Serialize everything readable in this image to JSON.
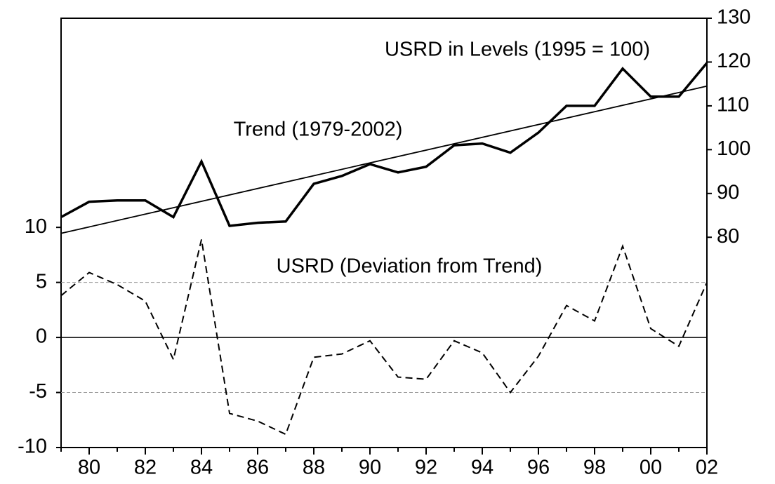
{
  "chart_data": {
    "type": "line",
    "x": [
      1979,
      1980,
      1981,
      1982,
      1983,
      1984,
      1985,
      1986,
      1987,
      1988,
      1989,
      1990,
      1991,
      1992,
      1993,
      1994,
      1995,
      1996,
      1997,
      1998,
      1999,
      2000,
      2001,
      2002
    ],
    "xlim": [
      1979,
      2002
    ],
    "xticks": [
      {
        "value": 1980,
        "label": "80"
      },
      {
        "value": 1982,
        "label": "82"
      },
      {
        "value": 1984,
        "label": "84"
      },
      {
        "value": 1986,
        "label": "86"
      },
      {
        "value": 1988,
        "label": "88"
      },
      {
        "value": 1990,
        "label": "90"
      },
      {
        "value": 1992,
        "label": "92"
      },
      {
        "value": 1994,
        "label": "94"
      },
      {
        "value": 1996,
        "label": "96"
      },
      {
        "value": 1998,
        "label": "98"
      },
      {
        "value": 2000,
        "label": "00"
      },
      {
        "value": 2002,
        "label": "02"
      }
    ],
    "ylim": [
      -10,
      29
    ],
    "yticks": [
      -10,
      -5,
      0,
      5,
      10
    ],
    "y2lim": [
      32,
      130
    ],
    "y2ticks": [
      80,
      90,
      100,
      110,
      120,
      130
    ],
    "reference_lines": [
      {
        "value": 0,
        "style": "solid"
      },
      {
        "value": 5,
        "style": "dashed"
      },
      {
        "value": -5,
        "style": "dashed"
      }
    ],
    "series": [
      {
        "name": "USRD in Levels (1995 = 100)",
        "axis": "y2",
        "style": "thick",
        "color": "#000000",
        "values": [
          84.6,
          88.1,
          88.4,
          88.4,
          84.6,
          97.3,
          82.6,
          83.3,
          83.6,
          92.2,
          94.0,
          96.7,
          94.8,
          96.1,
          101.0,
          101.4,
          99.3,
          103.9,
          110.0,
          110.0,
          118.5,
          112.1,
          112.1,
          119.8
        ]
      },
      {
        "name": "Trend (1979-2002)",
        "axis": "y2",
        "style": "thin",
        "color": "#000000",
        "x": [
          1979,
          2002
        ],
        "values": [
          80.9,
          114.5
        ]
      },
      {
        "name": "USRD (Deviation from Trend)",
        "axis": "y",
        "style": "dashed",
        "color": "#000000",
        "values": [
          3.8,
          5.9,
          4.8,
          3.3,
          -2.0,
          8.9,
          -6.9,
          -7.6,
          -8.8,
          -1.8,
          -1.5,
          -0.3,
          -3.6,
          -3.8,
          -0.3,
          -1.4,
          -5.0,
          -1.7,
          2.9,
          1.5,
          8.3,
          0.8,
          -0.8,
          5.0
        ]
      }
    ]
  }
}
